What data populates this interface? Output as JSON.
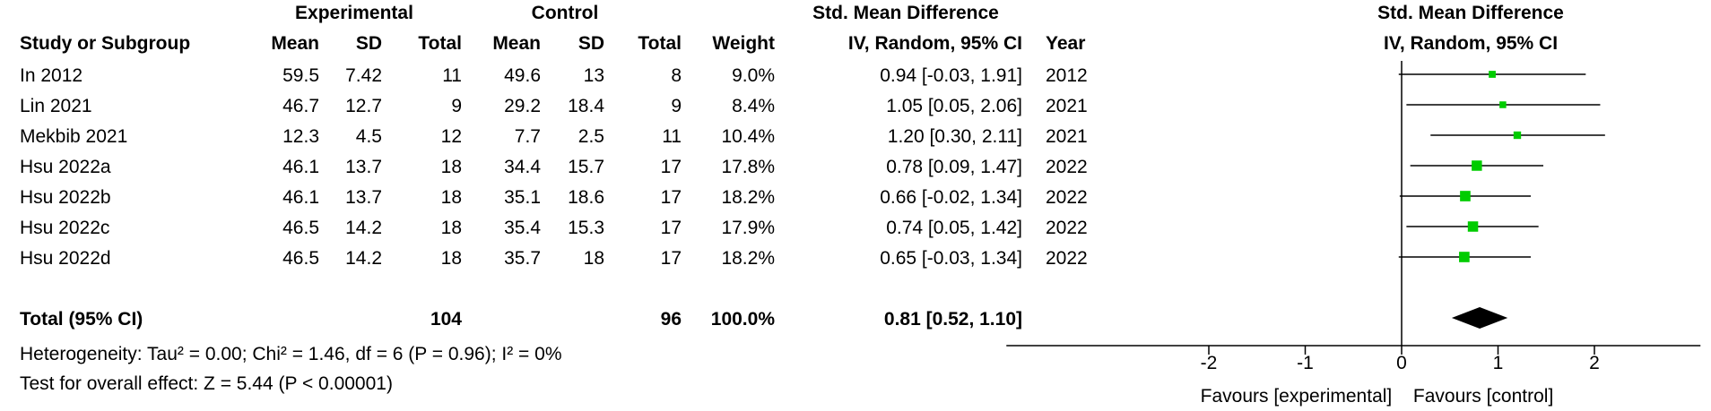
{
  "headers": {
    "group_experimental": "Experimental",
    "group_control": "Control",
    "smd_title": "Std. Mean Difference",
    "plot_title": "Std. Mean Difference",
    "col_study": "Study or Subgroup",
    "col_mean_e": "Mean",
    "col_sd_e": "SD",
    "col_total_e": "Total",
    "col_mean_c": "Mean",
    "col_sd_c": "SD",
    "col_total_c": "Total",
    "col_weight": "Weight",
    "col_ci": "IV, Random, 95% CI",
    "col_year": "Year",
    "plot_method": "IV, Random, 95% CI"
  },
  "studies": [
    {
      "name": "In 2012",
      "mean_e": "59.5",
      "sd_e": "7.42",
      "total_e": "11",
      "mean_c": "49.6",
      "sd_c": "13",
      "total_c": "8",
      "weight": "9.0%",
      "ci_text": "0.94 [-0.03, 1.91]",
      "year": "2012"
    },
    {
      "name": "Lin 2021",
      "mean_e": "46.7",
      "sd_e": "12.7",
      "total_e": "9",
      "mean_c": "29.2",
      "sd_c": "18.4",
      "total_c": "9",
      "weight": "8.4%",
      "ci_text": "1.05 [0.05, 2.06]",
      "year": "2021"
    },
    {
      "name": "Mekbib 2021",
      "mean_e": "12.3",
      "sd_e": "4.5",
      "total_e": "12",
      "mean_c": "7.7",
      "sd_c": "2.5",
      "total_c": "11",
      "weight": "10.4%",
      "ci_text": "1.20 [0.30, 2.11]",
      "year": "2021"
    },
    {
      "name": "Hsu 2022a",
      "mean_e": "46.1",
      "sd_e": "13.7",
      "total_e": "18",
      "mean_c": "34.4",
      "sd_c": "15.7",
      "total_c": "17",
      "weight": "17.8%",
      "ci_text": "0.78 [0.09, 1.47]",
      "year": "2022"
    },
    {
      "name": "Hsu 2022b",
      "mean_e": "46.1",
      "sd_e": "13.7",
      "total_e": "18",
      "mean_c": "35.1",
      "sd_c": "18.6",
      "total_c": "17",
      "weight": "18.2%",
      "ci_text": "0.66 [-0.02, 1.34]",
      "year": "2022"
    },
    {
      "name": "Hsu 2022c",
      "mean_e": "46.5",
      "sd_e": "14.2",
      "total_e": "18",
      "mean_c": "35.4",
      "sd_c": "15.3",
      "total_c": "17",
      "weight": "17.9%",
      "ci_text": "0.74 [0.05, 1.42]",
      "year": "2022"
    },
    {
      "name": "Hsu 2022d",
      "mean_e": "46.5",
      "sd_e": "14.2",
      "total_e": "18",
      "mean_c": "35.7",
      "sd_c": "18",
      "total_c": "17",
      "weight": "18.2%",
      "ci_text": "0.65 [-0.03, 1.34]",
      "year": "2022"
    }
  ],
  "total": {
    "label": "Total (95% CI)",
    "total_e": "104",
    "total_c": "96",
    "weight": "100.0%",
    "ci_text": "0.81 [0.52, 1.10]"
  },
  "heterogeneity": "Heterogeneity: Tau² = 0.00; Chi² = 1.46, df = 6 (P = 0.96); I² = 0%",
  "overall_effect": "Test for overall effect: Z = 5.44 (P < 0.00001)",
  "axis": {
    "favours_left": "Favours [experimental]",
    "favours_right": "Favours [control]"
  },
  "chart_data": {
    "type": "scatter",
    "subtype": "forest",
    "title": "Std. Mean Difference",
    "xlabel": "",
    "ylabel": "",
    "xlim": [
      -4.1,
      3.1
    ],
    "xticks": [
      -2,
      -1,
      0,
      1,
      2
    ],
    "x_tick_labels": [
      "-2",
      "-1",
      "0",
      "1",
      "2"
    ],
    "grid": false,
    "marker_color": "#00cc00",
    "diamond_color": "#000000",
    "studies": [
      {
        "name": "In 2012",
        "estimate": 0.94,
        "lower": -0.03,
        "upper": 1.91,
        "weight": 9.0
      },
      {
        "name": "Lin 2021",
        "estimate": 1.05,
        "lower": 0.05,
        "upper": 2.06,
        "weight": 8.4
      },
      {
        "name": "Mekbib 2021",
        "estimate": 1.2,
        "lower": 0.3,
        "upper": 2.11,
        "weight": 10.4
      },
      {
        "name": "Hsu 2022a",
        "estimate": 0.78,
        "lower": 0.09,
        "upper": 1.47,
        "weight": 17.8
      },
      {
        "name": "Hsu 2022b",
        "estimate": 0.66,
        "lower": -0.02,
        "upper": 1.34,
        "weight": 18.2
      },
      {
        "name": "Hsu 2022c",
        "estimate": 0.74,
        "lower": 0.05,
        "upper": 1.42,
        "weight": 17.9
      },
      {
        "name": "Hsu 2022d",
        "estimate": 0.65,
        "lower": -0.03,
        "upper": 1.34,
        "weight": 18.2
      }
    ],
    "pooled": {
      "estimate": 0.81,
      "lower": 0.52,
      "upper": 1.1
    }
  }
}
